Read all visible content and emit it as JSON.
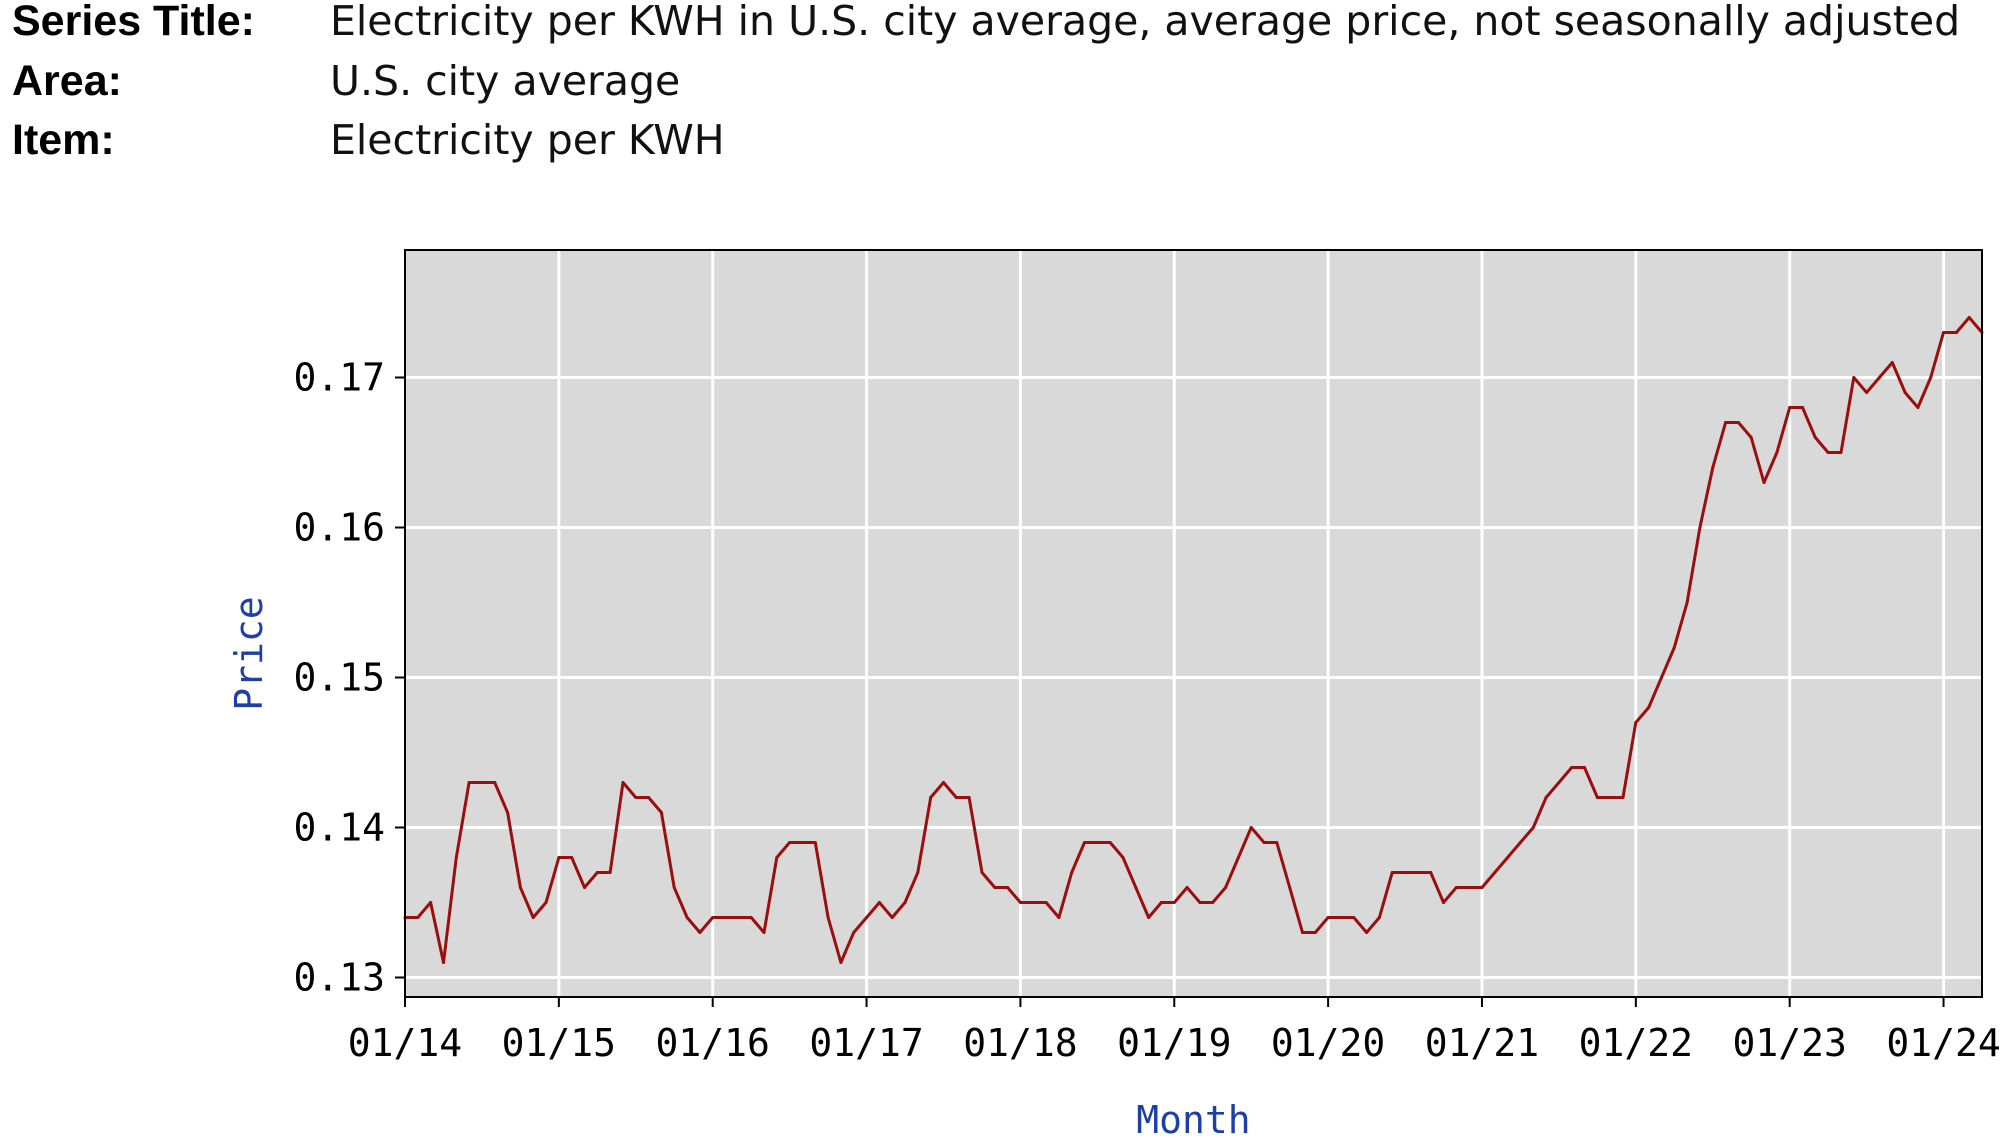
{
  "meta": {
    "series_title_label": "Series Title:",
    "series_title_value": "Electricity per KWH in U.S. city average, average price, not seasonally adjusted",
    "area_label": "Area:",
    "area_value": "U.S. city average",
    "item_label": "Item:",
    "item_value": "Electricity per KWH"
  },
  "chart_data": {
    "type": "line",
    "xlabel": "Month",
    "ylabel": "Price",
    "x_ticks": [
      "01/14",
      "01/15",
      "01/16",
      "01/17",
      "01/18",
      "01/19",
      "01/20",
      "01/21",
      "01/22",
      "01/23",
      "01/24"
    ],
    "y_ticks": [
      "0.13",
      "0.14",
      "0.15",
      "0.16",
      "0.17"
    ],
    "xlim": [
      "2014-01",
      "2024-04"
    ],
    "ylim": [
      0.1287,
      0.1785
    ],
    "grid": true,
    "background": "#d9d9d9",
    "line_color": "#9b0e0e",
    "series": [
      {
        "x": [
          "2014-01",
          "2014-02",
          "2014-03",
          "2014-04",
          "2014-05",
          "2014-06",
          "2014-07",
          "2014-08",
          "2014-09",
          "2014-10",
          "2014-11",
          "2014-12",
          "2015-01",
          "2015-02",
          "2015-03",
          "2015-04",
          "2015-05",
          "2015-06",
          "2015-07",
          "2015-08",
          "2015-09",
          "2015-10",
          "2015-11",
          "2015-12",
          "2016-01",
          "2016-02",
          "2016-03",
          "2016-04",
          "2016-05",
          "2016-06",
          "2016-07",
          "2016-08",
          "2016-09",
          "2016-10",
          "2016-11",
          "2016-12",
          "2017-01",
          "2017-02",
          "2017-03",
          "2017-04",
          "2017-05",
          "2017-06",
          "2017-07",
          "2017-08",
          "2017-09",
          "2017-10",
          "2017-11",
          "2017-12",
          "2018-01",
          "2018-02",
          "2018-03",
          "2018-04",
          "2018-05",
          "2018-06",
          "2018-07",
          "2018-08",
          "2018-09",
          "2018-10",
          "2018-11",
          "2018-12",
          "2019-01",
          "2019-02",
          "2019-03",
          "2019-04",
          "2019-05",
          "2019-06",
          "2019-07",
          "2019-08",
          "2019-09",
          "2019-10",
          "2019-11",
          "2019-12",
          "2020-01",
          "2020-02",
          "2020-03",
          "2020-04",
          "2020-05",
          "2020-06",
          "2020-07",
          "2020-08",
          "2020-09",
          "2020-10",
          "2020-11",
          "2020-12",
          "2021-01",
          "2021-02",
          "2021-03",
          "2021-04",
          "2021-05",
          "2021-06",
          "2021-07",
          "2021-08",
          "2021-09",
          "2021-10",
          "2021-11",
          "2021-12",
          "2022-01",
          "2022-02",
          "2022-03",
          "2022-04",
          "2022-05",
          "2022-06",
          "2022-07",
          "2022-08",
          "2022-09",
          "2022-10",
          "2022-11",
          "2022-12",
          "2023-01",
          "2023-02",
          "2023-03",
          "2023-04",
          "2023-05",
          "2023-06",
          "2023-07",
          "2023-08",
          "2023-09",
          "2023-10",
          "2023-11",
          "2023-12",
          "2024-01",
          "2024-02",
          "2024-03",
          "2024-04"
        ],
        "values": [
          0.134,
          0.134,
          0.135,
          0.131,
          0.138,
          0.143,
          0.143,
          0.143,
          0.141,
          0.136,
          0.134,
          0.135,
          0.138,
          0.138,
          0.136,
          0.137,
          0.137,
          0.143,
          0.142,
          0.142,
          0.141,
          0.136,
          0.134,
          0.133,
          0.134,
          0.134,
          0.134,
          0.134,
          0.133,
          0.138,
          0.139,
          0.139,
          0.139,
          0.134,
          0.131,
          0.133,
          0.134,
          0.135,
          0.134,
          0.135,
          0.137,
          0.142,
          0.143,
          0.142,
          0.142,
          0.137,
          0.136,
          0.136,
          0.135,
          0.135,
          0.135,
          0.134,
          0.137,
          0.139,
          0.139,
          0.139,
          0.138,
          0.136,
          0.134,
          0.135,
          0.135,
          0.136,
          0.135,
          0.135,
          0.136,
          0.138,
          0.14,
          0.139,
          0.139,
          0.136,
          0.133,
          0.133,
          0.134,
          0.134,
          0.134,
          0.133,
          0.134,
          0.137,
          0.137,
          0.137,
          0.137,
          0.135,
          0.136,
          0.136,
          0.136,
          0.137,
          0.138,
          0.139,
          0.14,
          0.142,
          0.143,
          0.144,
          0.144,
          0.142,
          0.142,
          0.142,
          0.147,
          0.148,
          0.15,
          0.152,
          0.155,
          0.16,
          0.164,
          0.167,
          0.167,
          0.166,
          0.163,
          0.165,
          0.168,
          0.168,
          0.166,
          0.165,
          0.165,
          0.17,
          0.169,
          0.17,
          0.171,
          0.169,
          0.168,
          0.17,
          0.173,
          0.173,
          0.174,
          0.173
        ]
      }
    ]
  }
}
